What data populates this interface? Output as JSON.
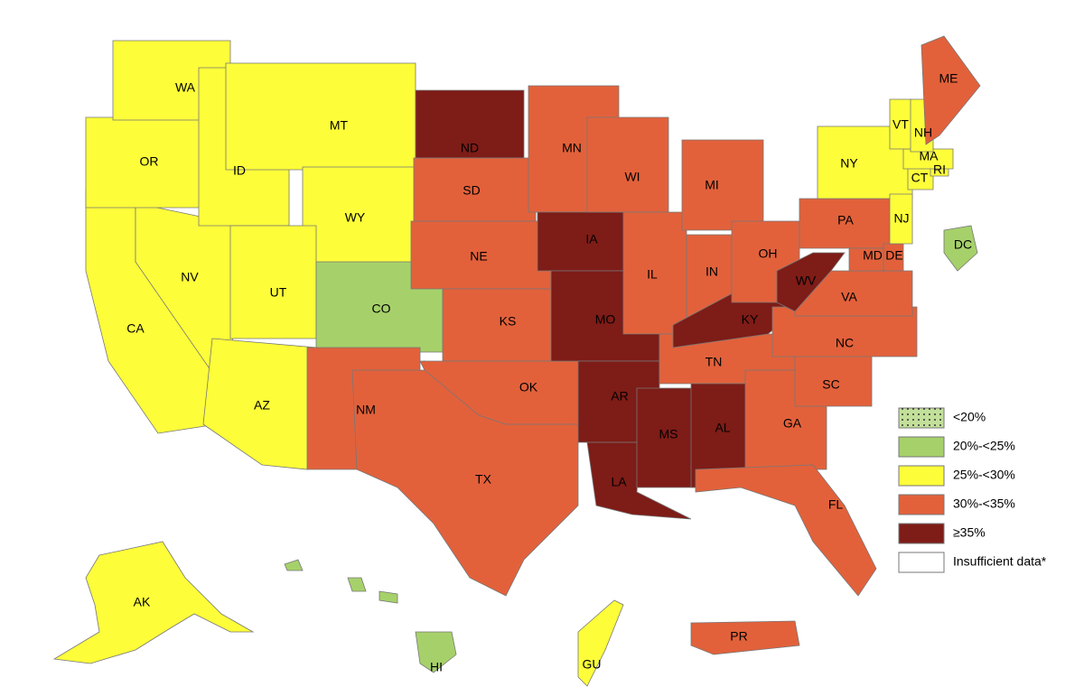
{
  "states": [
    {
      "label": "CA",
      "color": "#fdfd3a"
    },
    {
      "label": "NV",
      "color": "#fdfd3a"
    },
    {
      "label": "OR",
      "color": "#fdfd3a"
    },
    {
      "label": "WA",
      "color": "#fdfd3a"
    },
    {
      "label": "ID",
      "color": "#fdfd3a"
    },
    {
      "label": "MT",
      "color": "#fdfd3a"
    },
    {
      "label": "WY",
      "color": "#fdfd3a"
    },
    {
      "label": "UT",
      "color": "#fdfd3a"
    },
    {
      "label": "AZ",
      "color": "#fdfd3a"
    },
    {
      "label": "CO",
      "color": "#a6d16a"
    },
    {
      "label": "NM",
      "color": "#e2613b"
    },
    {
      "label": "ND",
      "color": "#7e1c17"
    },
    {
      "label": "SD",
      "color": "#e2613b"
    },
    {
      "label": "NE",
      "color": "#e2613b"
    },
    {
      "label": "KS",
      "color": "#e2613b"
    },
    {
      "label": "TX",
      "color": "#e2613b"
    },
    {
      "label": "OK",
      "color": "#e2613b"
    },
    {
      "label": "MN",
      "color": "#e2613b"
    },
    {
      "label": "IA",
      "color": "#7e1c17"
    },
    {
      "label": "MO",
      "color": "#7e1c17"
    },
    {
      "label": "AR",
      "color": "#7e1c17"
    },
    {
      "label": "LA",
      "color": "#7e1c17"
    },
    {
      "label": "WI",
      "color": "#e2613b"
    },
    {
      "label": "IL",
      "color": "#e2613b"
    },
    {
      "label": "MS",
      "color": "#7e1c17"
    },
    {
      "label": "MI",
      "color": "#e2613b"
    },
    {
      "label": "IN",
      "color": "#e2613b"
    },
    {
      "label": "TN",
      "color": "#e2613b"
    },
    {
      "label": "KY",
      "color": "#7e1c17"
    },
    {
      "label": "AL",
      "color": "#7e1c17"
    },
    {
      "label": "OH",
      "color": "#e2613b"
    },
    {
      "label": "GA",
      "color": "#e2613b"
    },
    {
      "label": "FL",
      "color": "#e2613b"
    },
    {
      "label": "SC",
      "color": "#e2613b"
    },
    {
      "label": "NC",
      "color": "#e2613b"
    },
    {
      "label": "VA",
      "color": "#e2613b"
    },
    {
      "label": "WV",
      "color": "#7e1c17"
    },
    {
      "label": "PA",
      "color": "#e2613b"
    },
    {
      "label": "MD",
      "color": "#e2613b"
    },
    {
      "label": "DE",
      "color": "#e2613b"
    },
    {
      "label": "NY",
      "color": "#fdfd3a"
    },
    {
      "label": "NJ",
      "color": "#fdfd3a"
    },
    {
      "label": "CT",
      "color": "#fdfd3a"
    },
    {
      "label": "RI",
      "color": "#fdfd3a"
    },
    {
      "label": "MA",
      "color": "#fdfd3a"
    },
    {
      "label": "VT",
      "color": "#fdfd3a"
    },
    {
      "label": "NH",
      "color": "#fdfd3a"
    },
    {
      "label": "ME",
      "color": "#e2613b"
    },
    {
      "label": "DC",
      "color": "#a6d16a"
    },
    {
      "label": "AK",
      "color": "#fdfd3a"
    },
    {
      "label": "HI",
      "color": "#a6d16a"
    },
    {
      "label": "GU",
      "color": "#fdfd3a"
    },
    {
      "label": "PR",
      "color": "#e2613b"
    }
  ],
  "legend": {
    "items": [
      {
        "label": "<20%",
        "color": "#c3e09a"
      },
      {
        "label": "20%-<25%",
        "color": "#a6d16a"
      },
      {
        "label": "25%-<30%",
        "color": "#fdfd3a"
      },
      {
        "label": "30%-<35%",
        "color": "#e2613b"
      },
      {
        "label": "≥35%",
        "color": "#7e1c17"
      },
      {
        "label": "Insufficient data*",
        "color": "#ffffff"
      }
    ]
  }
}
